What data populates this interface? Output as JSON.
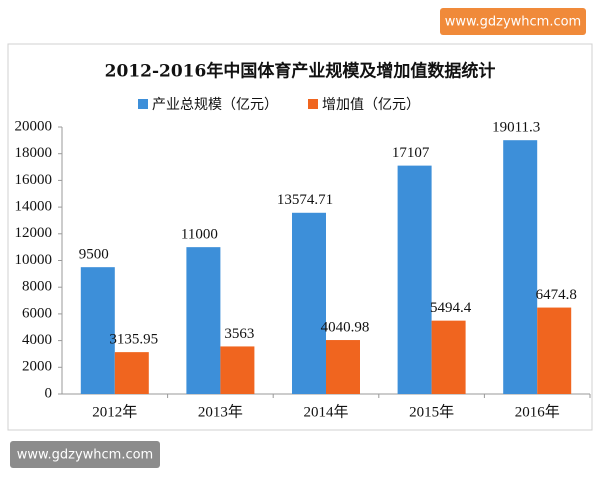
{
  "chart_data": {
    "type": "bar",
    "title": "2012-2016年中国体育产业规模及增加值数据统计",
    "categories": [
      "2012年",
      "2013年",
      "2014年",
      "2015年",
      "2016年"
    ],
    "series": [
      {
        "name": "产业总规模（亿元）",
        "color": "#3d8fd9",
        "values": [
          9500,
          11000,
          13574.71,
          17107,
          19011.3
        ]
      },
      {
        "name": "增加值（亿元）",
        "color": "#f0651f",
        "values": [
          3135.95,
          3563,
          4040.98,
          5494.4,
          6474.8
        ]
      }
    ],
    "ylim": [
      0,
      20000
    ],
    "yticks": [
      0,
      2000,
      4000,
      6000,
      8000,
      10000,
      12000,
      14000,
      16000,
      18000,
      20000
    ],
    "grid": false,
    "legend": "top"
  },
  "watermarks": [
    "www.gdzywhcm.com",
    "www.gdzywhcm.com"
  ]
}
